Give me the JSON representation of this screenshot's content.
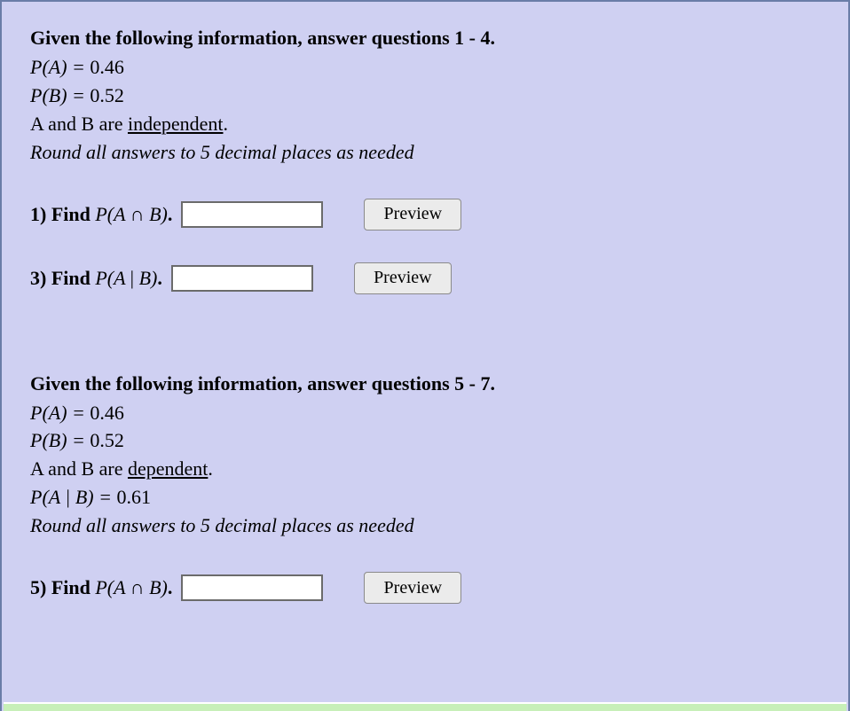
{
  "colors": {
    "panel_bg": "#cfd0f2",
    "panel_border": "#6a7da8",
    "bottom_strip": "#c7efb8",
    "text": "#000000",
    "input_bg": "#ffffff",
    "input_border": "#6b6b6b",
    "button_bg": "#ebebeb",
    "button_border": "#8a8a8a"
  },
  "section1": {
    "heading": "Given the following information, answer questions 1 - 4.",
    "pA_label": "P(A) = ",
    "pA_value": "0.46",
    "pB_label": "P(B) = ",
    "pB_value": "0.52",
    "relation_prefix": "A and B are ",
    "relation_word": "independent",
    "relation_suffix": ".",
    "round_note": "Round all answers to 5 decimal places as needed"
  },
  "q1": {
    "num": "1) ",
    "find": "Find ",
    "expr_open": "P(A ",
    "op": "∩",
    "expr_mid": " B)",
    "period": ".",
    "preview": "Preview",
    "value": ""
  },
  "q3": {
    "num": "3) ",
    "find": "Find ",
    "expr_open": "P(A ",
    "op": "|",
    "expr_mid": " B)",
    "period": ".",
    "preview": "Preview",
    "value": ""
  },
  "section2": {
    "heading": "Given the following information, answer questions 5 - 7.",
    "pA_label": "P(A) = ",
    "pA_value": "0.46",
    "pB_label": "P(B) = ",
    "pB_value": "0.52",
    "relation_prefix": "A and B are ",
    "relation_word": "dependent",
    "relation_suffix": ".",
    "cond_label": "P(A | B) = ",
    "cond_value": "0.61",
    "round_note": "Round all answers to 5 decimal places as needed"
  },
  "q5": {
    "num": "5) ",
    "find": "Find ",
    "expr_open": "P(A ",
    "op": "∩",
    "expr_mid": " B)",
    "period": ".",
    "preview": "Preview",
    "value": ""
  }
}
